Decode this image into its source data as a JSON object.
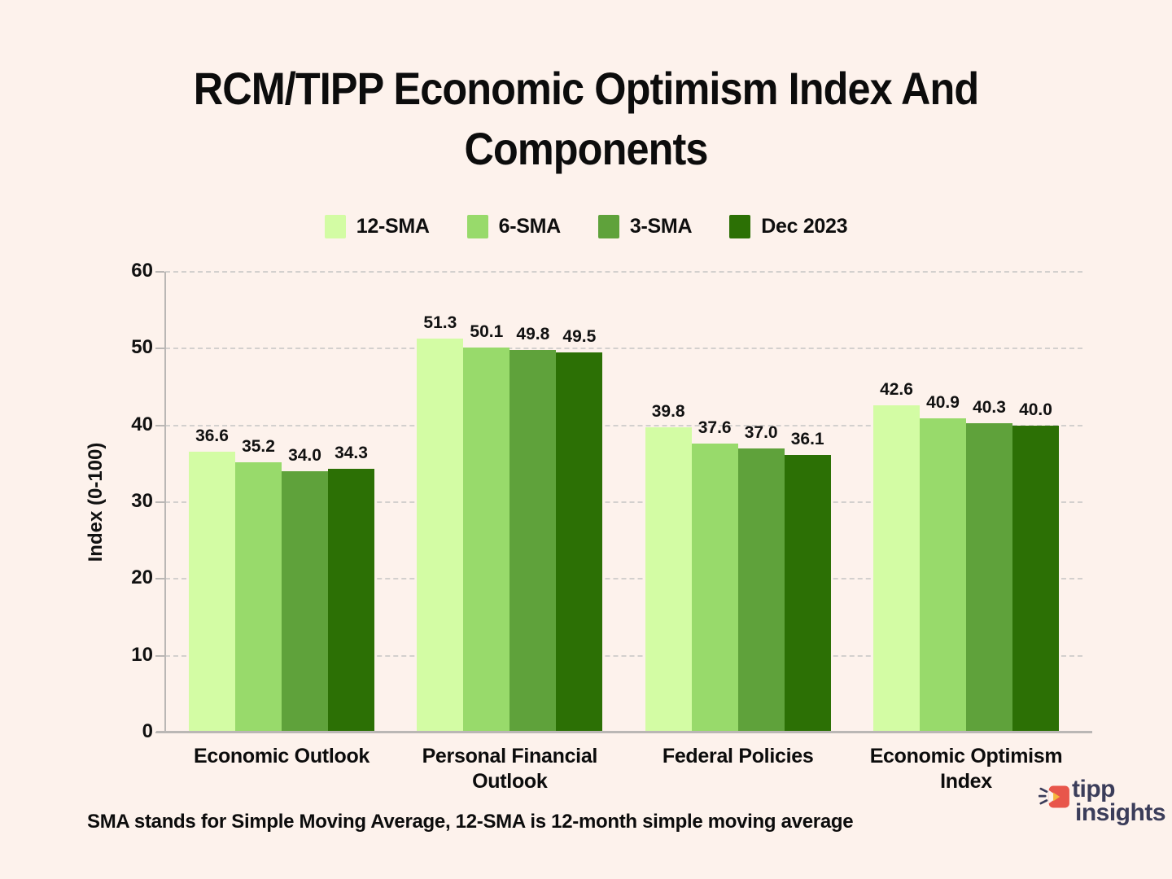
{
  "header": {
    "title_lines": [
      "RCM/TIPP Economic Optimism Index And",
      "Components"
    ]
  },
  "footnote": "SMA stands for Simple Moving Average, 12-SMA is 12-month simple moving average",
  "logo": {
    "word1": "tipp",
    "word2": "insights",
    "text_color": "#3B3D5A",
    "icon_color": "#E8564B"
  },
  "colors": {
    "background": "#FDF2EC",
    "grid": "#d3d0ce",
    "axis": "#bab7b5",
    "text": "#0e0e0e"
  },
  "chart_data": {
    "type": "bar",
    "title": "RCM/TIPP Economic Optimism Index And Components",
    "categories": [
      "Economic Outlook",
      "Personal Financial Outlook",
      "Federal Policies",
      "Economic Optimism Index"
    ],
    "series": [
      {
        "name": "12-SMA",
        "color": "#D3FCA4",
        "values": [
          36.6,
          51.3,
          39.8,
          42.6
        ]
      },
      {
        "name": "6-SMA",
        "color": "#98DA6B",
        "values": [
          35.2,
          50.1,
          37.6,
          40.9
        ]
      },
      {
        "name": "3-SMA",
        "color": "#5FA23B",
        "values": [
          34.0,
          49.8,
          37.0,
          40.3
        ]
      },
      {
        "name": "Dec 2023",
        "color": "#2C7005",
        "values": [
          34.3,
          49.5,
          36.1,
          40.0
        ]
      }
    ],
    "xlabel": "",
    "ylabel": "Index (0-100)",
    "ylim": [
      0,
      60
    ],
    "yticks": [
      0,
      10,
      20,
      30,
      40,
      50,
      60
    ],
    "grid": "horizontal-dashed",
    "legend_position": "top",
    "bar_value_labels": true,
    "value_label_decimals": 1
  }
}
